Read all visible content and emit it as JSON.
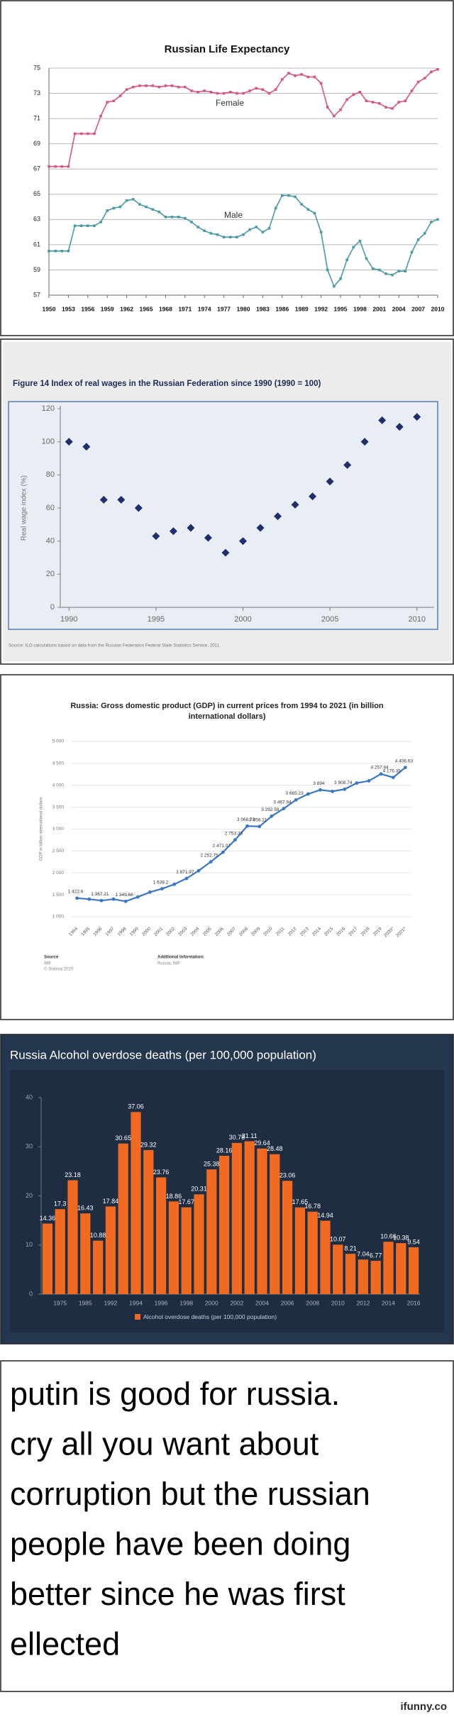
{
  "chart_data": [
    {
      "type": "line",
      "title": "Russian Life Expectancy",
      "x": [
        1950,
        1951,
        1952,
        1953,
        1954,
        1955,
        1956,
        1957,
        1958,
        1959,
        1960,
        1961,
        1962,
        1963,
        1964,
        1965,
        1966,
        1967,
        1968,
        1969,
        1970,
        1971,
        1972,
        1973,
        1974,
        1975,
        1976,
        1977,
        1978,
        1979,
        1980,
        1981,
        1982,
        1983,
        1984,
        1985,
        1986,
        1987,
        1988,
        1989,
        1990,
        1991,
        1992,
        1993,
        1994,
        1995,
        1996,
        1997,
        1998,
        1999,
        2000,
        2001,
        2002,
        2003,
        2004,
        2005,
        2006,
        2007,
        2008,
        2009,
        2010
      ],
      "series": [
        {
          "name": "Female",
          "color": "#d4587c",
          "values": [
            67.2,
            67.2,
            67.2,
            67.2,
            69.8,
            69.8,
            69.8,
            69.8,
            71.2,
            72.3,
            72.4,
            72.8,
            73.3,
            73.5,
            73.6,
            73.6,
            73.6,
            73.5,
            73.6,
            73.6,
            73.5,
            73.5,
            73.2,
            73.1,
            73.2,
            73.1,
            73.0,
            73.0,
            73.1,
            73.0,
            73.0,
            73.2,
            73.4,
            73.3,
            73.0,
            73.3,
            74.1,
            74.6,
            74.4,
            74.5,
            74.3,
            74.3,
            73.8,
            71.9,
            71.2,
            71.7,
            72.5,
            72.9,
            73.1,
            72.4,
            72.3,
            72.2,
            71.9,
            71.8,
            72.3,
            72.4,
            73.2,
            73.9,
            74.2,
            74.7,
            74.9
          ]
        },
        {
          "name": "Male",
          "color": "#4b9aa6",
          "values": [
            60.5,
            60.5,
            60.5,
            60.5,
            62.5,
            62.5,
            62.5,
            62.5,
            62.8,
            63.7,
            63.9,
            64.0,
            64.5,
            64.6,
            64.2,
            64.0,
            63.8,
            63.6,
            63.2,
            63.2,
            63.2,
            63.1,
            62.8,
            62.4,
            62.1,
            61.9,
            61.8,
            61.6,
            61.6,
            61.6,
            61.8,
            62.2,
            62.4,
            62.0,
            62.3,
            63.9,
            64.9,
            64.9,
            64.8,
            64.2,
            63.8,
            63.5,
            62.0,
            59.0,
            57.7,
            58.3,
            59.8,
            60.8,
            61.3,
            59.9,
            59.1,
            59.0,
            58.7,
            58.6,
            58.9,
            58.9,
            60.4,
            61.4,
            61.9,
            62.8,
            63.0
          ]
        }
      ],
      "xlim": [
        1950,
        2010
      ],
      "xticks": [
        1950,
        1953,
        1956,
        1959,
        1962,
        1965,
        1968,
        1971,
        1974,
        1977,
        1980,
        1983,
        1986,
        1989,
        1992,
        1995,
        1998,
        2001,
        2004,
        2007,
        2010
      ],
      "ylim": [
        57,
        75
      ],
      "yticks": [
        57,
        59,
        61,
        63,
        65,
        67,
        69,
        71,
        73,
        75
      ],
      "grid": true
    },
    {
      "type": "scatter",
      "title": "Figure 14  Index of real wages in the Russian Federation since 1990 (1990 = 100)",
      "x": [
        1990,
        1991,
        1992,
        1993,
        1994,
        1995,
        1996,
        1997,
        1998,
        1999,
        2000,
        2001,
        2002,
        2003,
        2004,
        2005,
        2006,
        2007,
        2008,
        2009,
        2010
      ],
      "values": [
        100,
        97,
        65,
        65,
        60,
        43,
        46,
        48,
        42,
        33,
        40,
        48,
        55,
        62,
        67,
        76,
        86,
        100,
        113,
        109,
        115
      ],
      "color": "#1f2f6b",
      "y_label": "Real wage index (%)",
      "source": "Source: ILO calculations based on data from the Russian Federation Federal State Statistics Service, 2011.",
      "xlim": [
        1989.5,
        2010.5
      ],
      "xticks": [
        1990,
        1995,
        2000,
        2005,
        2010
      ],
      "ylim": [
        0,
        120
      ],
      "yticks": [
        0,
        20,
        40,
        60,
        80,
        100,
        120
      ],
      "grid": false
    },
    {
      "type": "line",
      "title": "Russia: Gross domestic product (GDP) in current prices from 1994 to 2021 (in billion international dollars)",
      "categories": [
        "1994",
        "1995",
        "1996",
        "1997",
        "1998",
        "1999",
        "2000",
        "2001",
        "2002",
        "2003",
        "2004",
        "2005",
        "2006",
        "2007",
        "2008",
        "2009",
        "2010",
        "2011",
        "2012",
        "2013",
        "2014",
        "2015",
        "2016",
        "2017",
        "2018",
        "2019",
        "2020*",
        "2021*"
      ],
      "values": [
        1422.6,
        1400,
        1367.21,
        1400,
        1349.66,
        1450,
        1560,
        1638.2,
        1740,
        1871.97,
        2050,
        2252.75,
        2471.07,
        2753.33,
        3068.73,
        3058.21,
        3292.58,
        3467.94,
        3665.23,
        3800,
        3894,
        3860,
        3908.74,
        4050,
        4100,
        4257.84,
        4176.35,
        4406.63
      ],
      "value_labels": [
        "1 422.6",
        null,
        "1 367.21",
        null,
        "1 349.66",
        null,
        null,
        "1 638.2",
        null,
        "1 871.97",
        null,
        "2 252.75",
        "2 471.07",
        "2 753.33",
        "3 068.73",
        "3 058.21",
        "3 292.58",
        "3 467.94",
        "3 665.23",
        null,
        "3 894",
        null,
        "3 908.74",
        null,
        null,
        "4 257.84",
        "4 176.35",
        "4 406.63"
      ],
      "color": "#3a78c3",
      "y_label": "GDP in billion international dollars",
      "ylim": [
        1000,
        5000
      ],
      "yticks": [
        {
          "value": 1000,
          "label": "1 000"
        },
        {
          "value": 1500,
          "label": "1 500"
        },
        {
          "value": 2000,
          "label": "2 000"
        },
        {
          "value": 2500,
          "label": "2 500"
        },
        {
          "value": 3000,
          "label": "3 000"
        },
        {
          "value": 3500,
          "label": "3 500"
        },
        {
          "value": 4000,
          "label": "4 000"
        },
        {
          "value": 4500,
          "label": "4 500"
        },
        {
          "value": 5000,
          "label": "5 000"
        }
      ],
      "grid": true,
      "source_heading": "Source",
      "source": "IMF",
      "copyright": "© Statista 2020",
      "info_heading": "Additional Information:",
      "info": "Russia; IMF"
    },
    {
      "type": "bar",
      "title": "Russia Alcohol overdose deaths (per 100,000 population)",
      "categories": [
        null,
        "1975",
        null,
        "1985",
        null,
        "1992",
        null,
        "1994",
        null,
        "1996",
        null,
        "1998",
        null,
        "2000",
        null,
        "2002",
        null,
        "2004",
        null,
        "2006",
        null,
        "2008",
        null,
        "2010",
        null,
        "2012",
        null,
        "2014",
        null,
        "2016"
      ],
      "series": [
        {
          "name": "Alcohol overdose deaths (per 100,000 population)",
          "color": "#f26a21",
          "values": [
            14.36,
            17.3,
            23.18,
            16.43,
            10.88,
            17.84,
            30.65,
            37.06,
            29.32,
            23.76,
            18.86,
            17.67,
            20.31,
            25.38,
            28.16,
            30.78,
            31.11,
            29.64,
            28.48,
            23.06,
            17.65,
            16.78,
            14.94,
            10.07,
            8.21,
            7.04,
            6.77,
            10.66,
            10.38,
            9.54
          ]
        }
      ],
      "ylim": [
        0,
        40
      ],
      "yticks": [
        0,
        10,
        20,
        30,
        40
      ],
      "grid": false
    }
  ],
  "caption_lines": [
    "putin is good for russia.",
    "cry all you want about",
    "corruption but the russian",
    "people have been doing",
    "better since he was first",
    "ellected"
  ],
  "watermark": "ifunny.co"
}
